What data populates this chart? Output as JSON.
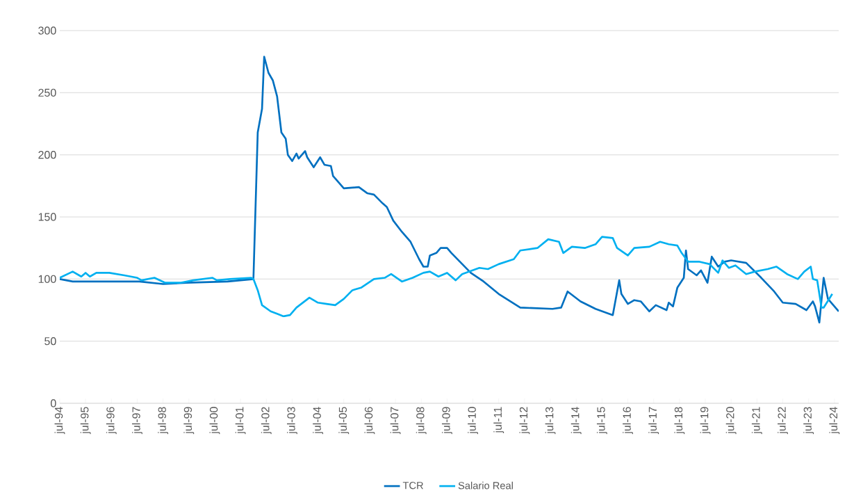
{
  "chart_data": {
    "type": "line",
    "xlim": [
      "1994-07",
      "2024-09"
    ],
    "ylim": [
      0,
      300
    ],
    "yticks": [
      0,
      50,
      100,
      150,
      200,
      250,
      300
    ],
    "xticks": [
      {
        "value": "1994-07",
        "label": "jul-94"
      },
      {
        "value": "1995-07",
        "label": "jul-95"
      },
      {
        "value": "1996-07",
        "label": "jul-96"
      },
      {
        "value": "1997-07",
        "label": "jul-97"
      },
      {
        "value": "1998-07",
        "label": "jul-98"
      },
      {
        "value": "1999-07",
        "label": "jul-99"
      },
      {
        "value": "2000-07",
        "label": "jul-00"
      },
      {
        "value": "2001-07",
        "label": "jul-01"
      },
      {
        "value": "2002-07",
        "label": "jul-02"
      },
      {
        "value": "2003-07",
        "label": "jul-03"
      },
      {
        "value": "2004-07",
        "label": "jul-04"
      },
      {
        "value": "2005-07",
        "label": "jul-05"
      },
      {
        "value": "2006-07",
        "label": "jul-06"
      },
      {
        "value": "2007-07",
        "label": "jul-07"
      },
      {
        "value": "2008-07",
        "label": "jul-08"
      },
      {
        "value": "2009-07",
        "label": "jul-09"
      },
      {
        "value": "2010-07",
        "label": "jul-10"
      },
      {
        "value": "2011-07",
        "label": "jul-11"
      },
      {
        "value": "2012-07",
        "label": "jul-12"
      },
      {
        "value": "2013-07",
        "label": "jul-13"
      },
      {
        "value": "2014-07",
        "label": "jul-14"
      },
      {
        "value": "2015-07",
        "label": "jul-15"
      },
      {
        "value": "2016-07",
        "label": "jul-16"
      },
      {
        "value": "2017-07",
        "label": "jul-17"
      },
      {
        "value": "2018-07",
        "label": "jul-18"
      },
      {
        "value": "2019-07",
        "label": "jul-19"
      },
      {
        "value": "2020-07",
        "label": "jul-20"
      },
      {
        "value": "2021-07",
        "label": "jul-21"
      },
      {
        "value": "2022-07",
        "label": "jul-22"
      },
      {
        "value": "2023-07",
        "label": "jul-23"
      },
      {
        "value": "2024-07",
        "label": "jul-24"
      }
    ],
    "grid": "y",
    "legend": "bottom",
    "marker": "none",
    "line_style": "solid",
    "series": [
      {
        "name": "TCR",
        "color": "#0070c0",
        "x": [
          "1994-07",
          "1995-01",
          "1997-08",
          "1998-07",
          "1999-06",
          "2001-01",
          "2002-01",
          "2002-03",
          "2002-05",
          "2002-06",
          "2002-08",
          "2002-10",
          "2002-12",
          "2003-02",
          "2003-04",
          "2003-05",
          "2003-07",
          "2003-09",
          "2003-10",
          "2004-01",
          "2004-02",
          "2004-05",
          "2004-08",
          "2004-10",
          "2005-01",
          "2005-02",
          "2005-07",
          "2006-02",
          "2006-06",
          "2006-09",
          "2007-01",
          "2007-03",
          "2007-06",
          "2007-10",
          "2008-02",
          "2008-06",
          "2008-08",
          "2008-10",
          "2008-11",
          "2009-02",
          "2009-04",
          "2009-07",
          "2009-09",
          "2010-06",
          "2010-12",
          "2011-07",
          "2012-05",
          "2013-08",
          "2013-12",
          "2014-03",
          "2014-09",
          "2015-04",
          "2015-12",
          "2016-03",
          "2016-04",
          "2016-07",
          "2016-10",
          "2017-01",
          "2017-05",
          "2017-08",
          "2018-01",
          "2018-02",
          "2018-04",
          "2018-06",
          "2018-09",
          "2018-10",
          "2018-11",
          "2019-03",
          "2019-05",
          "2019-08",
          "2019-10",
          "2020-01",
          "2020-04",
          "2020-07",
          "2021-02",
          "2021-09",
          "2022-03",
          "2022-07",
          "2023-01",
          "2023-06",
          "2023-09",
          "2023-10",
          "2023-12",
          "2024-02",
          "2024-04",
          "2024-09"
        ],
        "values": [
          100,
          98,
          98,
          96,
          97,
          98,
          100,
          218,
          237,
          279,
          266,
          260,
          247,
          218,
          213,
          200,
          195,
          201,
          197,
          203,
          198,
          190,
          198,
          192,
          191,
          183,
          173,
          174,
          169,
          168,
          161,
          158,
          147,
          138,
          130,
          116,
          110,
          110,
          119,
          121,
          125,
          125,
          121,
          105,
          98,
          88,
          77,
          76,
          77,
          90,
          82,
          76,
          71,
          99,
          88,
          80,
          83,
          82,
          74,
          79,
          75,
          81,
          78,
          93,
          101,
          123,
          108,
          103,
          107,
          97,
          118,
          110,
          114,
          115,
          113,
          101,
          90,
          81,
          80,
          75,
          82,
          78,
          65,
          101,
          84,
          74
        ]
      },
      {
        "name": "Salario Real",
        "color": "#00b0f0",
        "x": [
          "1994-07",
          "1995-01",
          "1995-05",
          "1995-07",
          "1995-09",
          "1995-12",
          "1996-06",
          "1997-01",
          "1997-07",
          "1997-09",
          "1998-03",
          "1998-08",
          "1999-03",
          "1999-09",
          "2000-06",
          "2000-08",
          "2001-02",
          "2001-12",
          "2002-01",
          "2002-03",
          "2002-05",
          "2002-09",
          "2002-12",
          "2003-03",
          "2003-06",
          "2003-09",
          "2004-03",
          "2004-07",
          "2004-11",
          "2005-03",
          "2005-07",
          "2005-11",
          "2006-03",
          "2006-09",
          "2007-02",
          "2007-05",
          "2007-10",
          "2008-03",
          "2008-08",
          "2008-11",
          "2009-03",
          "2009-07",
          "2009-11",
          "2010-02",
          "2010-10",
          "2011-02",
          "2011-07",
          "2012-02",
          "2012-05",
          "2013-01",
          "2013-06",
          "2013-11",
          "2014-01",
          "2014-05",
          "2014-11",
          "2015-04",
          "2015-07",
          "2015-12",
          "2016-02",
          "2016-07",
          "2016-10",
          "2017-05",
          "2017-10",
          "2018-02",
          "2018-06",
          "2018-08",
          "2018-11",
          "2019-04",
          "2019-09",
          "2020-01",
          "2020-03",
          "2020-06",
          "2020-09",
          "2021-02",
          "2021-06",
          "2021-12",
          "2022-04",
          "2022-09",
          "2023-02",
          "2023-05",
          "2023-08",
          "2023-09",
          "2023-11",
          "2024-01",
          "2024-02",
          "2024-06"
        ],
        "values": [
          101,
          106,
          102,
          105,
          102,
          105,
          105,
          103,
          101,
          99,
          101,
          97,
          97,
          99,
          101,
          99,
          100,
          101,
          100,
          91,
          79,
          74,
          72,
          70,
          71,
          77,
          85,
          81,
          80,
          79,
          84,
          91,
          93,
          100,
          101,
          104,
          98,
          101,
          105,
          106,
          102,
          105,
          99,
          104,
          109,
          108,
          112,
          116,
          123,
          125,
          132,
          130,
          121,
          126,
          125,
          128,
          134,
          133,
          125,
          119,
          125,
          126,
          130,
          128,
          127,
          121,
          114,
          114,
          112,
          105,
          115,
          109,
          111,
          104,
          106,
          108,
          110,
          104,
          100,
          106,
          110,
          100,
          99,
          77,
          77,
          88
        ]
      }
    ]
  }
}
